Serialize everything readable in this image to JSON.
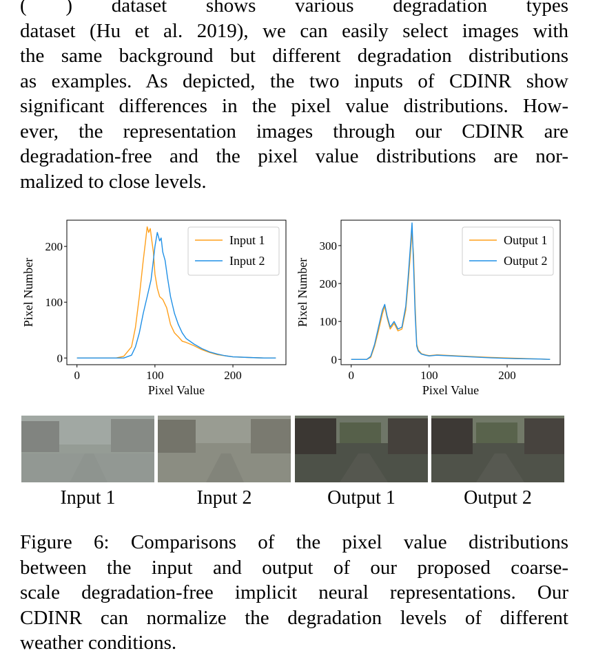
{
  "top_paragraph": {
    "lines": [
      "(                   ) dataset shows various degradation types",
      "dataset (Hu et al. 2019), we can easily select images with",
      "the same background but different degradation distributions",
      "as examples. As depicted, the two inputs of CDINR show",
      "significant differences in the pixel value distributions. How-",
      "ever, the representation images through our CDINR are",
      "degradation-free and the pixel value distributions are nor-",
      "malized to close levels."
    ]
  },
  "colors": {
    "orange": "#ff9f1a",
    "blue": "#1e8fe6",
    "axis": "#000000"
  },
  "chart_data": [
    {
      "type": "line",
      "xlabel": "Pixel Value",
      "ylabel": "Pixel Number",
      "xlim": [
        -13,
        268
      ],
      "ylim": [
        -12,
        247
      ],
      "xticks": [
        0,
        100,
        200
      ],
      "yticks": [
        0,
        100,
        200
      ],
      "legend": "top-right",
      "grid": false,
      "series": [
        {
          "name": "Input 1",
          "color": "#ff9f1a",
          "x": [
            0,
            50,
            60,
            70,
            75,
            80,
            85,
            88,
            90,
            92,
            94,
            96,
            98,
            100,
            103,
            106,
            110,
            115,
            120,
            125,
            130,
            135,
            140,
            150,
            160,
            170,
            180,
            190,
            200,
            220,
            240,
            255
          ],
          "y": [
            0,
            0,
            3,
            20,
            55,
            110,
            175,
            210,
            235,
            225,
            232,
            210,
            190,
            150,
            125,
            110,
            105,
            90,
            60,
            45,
            38,
            30,
            28,
            22,
            15,
            10,
            6,
            4,
            2,
            1,
            0,
            0
          ]
        },
        {
          "name": "Input 2",
          "color": "#1e8fe6",
          "x": [
            0,
            60,
            70,
            75,
            80,
            85,
            90,
            95,
            98,
            100,
            103,
            106,
            108,
            110,
            113,
            116,
            120,
            125,
            130,
            135,
            140,
            150,
            160,
            170,
            180,
            190,
            200,
            220,
            240,
            255
          ],
          "y": [
            0,
            0,
            5,
            20,
            45,
            80,
            110,
            140,
            175,
            200,
            225,
            210,
            215,
            190,
            175,
            145,
            110,
            80,
            60,
            45,
            35,
            25,
            17,
            11,
            7,
            4,
            2,
            1,
            0,
            0
          ]
        }
      ]
    },
    {
      "type": "line",
      "xlabel": "Pixel Value",
      "ylabel": "Pixel Number",
      "xlim": [
        -13,
        268
      ],
      "ylim": [
        -14,
        367
      ],
      "xticks": [
        0,
        100,
        200
      ],
      "yticks": [
        0,
        100,
        200,
        300
      ],
      "legend": "top-right",
      "grid": false,
      "series": [
        {
          "name": "Output 1",
          "color": "#ff9f1a",
          "x": [
            0,
            20,
            25,
            30,
            35,
            40,
            43,
            46,
            50,
            55,
            60,
            65,
            70,
            73,
            76,
            78,
            80,
            82,
            84,
            86,
            90,
            95,
            100,
            110,
            130,
            150,
            180,
            210,
            240,
            255
          ],
          "y": [
            0,
            0,
            5,
            35,
            75,
            120,
            140,
            110,
            80,
            95,
            75,
            80,
            130,
            200,
            280,
            335,
            275,
            140,
            40,
            25,
            15,
            12,
            10,
            12,
            10,
            8,
            5,
            3,
            1,
            0
          ]
        },
        {
          "name": "Output 2",
          "color": "#1e8fe6",
          "x": [
            0,
            20,
            25,
            30,
            35,
            40,
            43,
            46,
            50,
            55,
            60,
            65,
            70,
            73,
            76,
            78,
            80,
            82,
            84,
            86,
            90,
            95,
            100,
            110,
            130,
            150,
            180,
            210,
            240,
            255
          ],
          "y": [
            0,
            0,
            8,
            40,
            85,
            130,
            145,
            115,
            85,
            100,
            80,
            85,
            140,
            215,
            300,
            360,
            250,
            120,
            35,
            22,
            14,
            11,
            9,
            11,
            9,
            7,
            4,
            2,
            1,
            0
          ]
        }
      ]
    }
  ],
  "thumbnails": [
    {
      "label": "Input 1"
    },
    {
      "label": "Input 2"
    },
    {
      "label": "Output 1"
    },
    {
      "label": "Output 2"
    }
  ],
  "caption": {
    "lines": [
      "Figure 6: Comparisons of the pixel value distributions",
      "between the input and output of our proposed coarse-",
      "scale degradation-free implicit neural representations. Our",
      "CDINR can normalize the degradation levels of different",
      "weather conditions."
    ]
  }
}
